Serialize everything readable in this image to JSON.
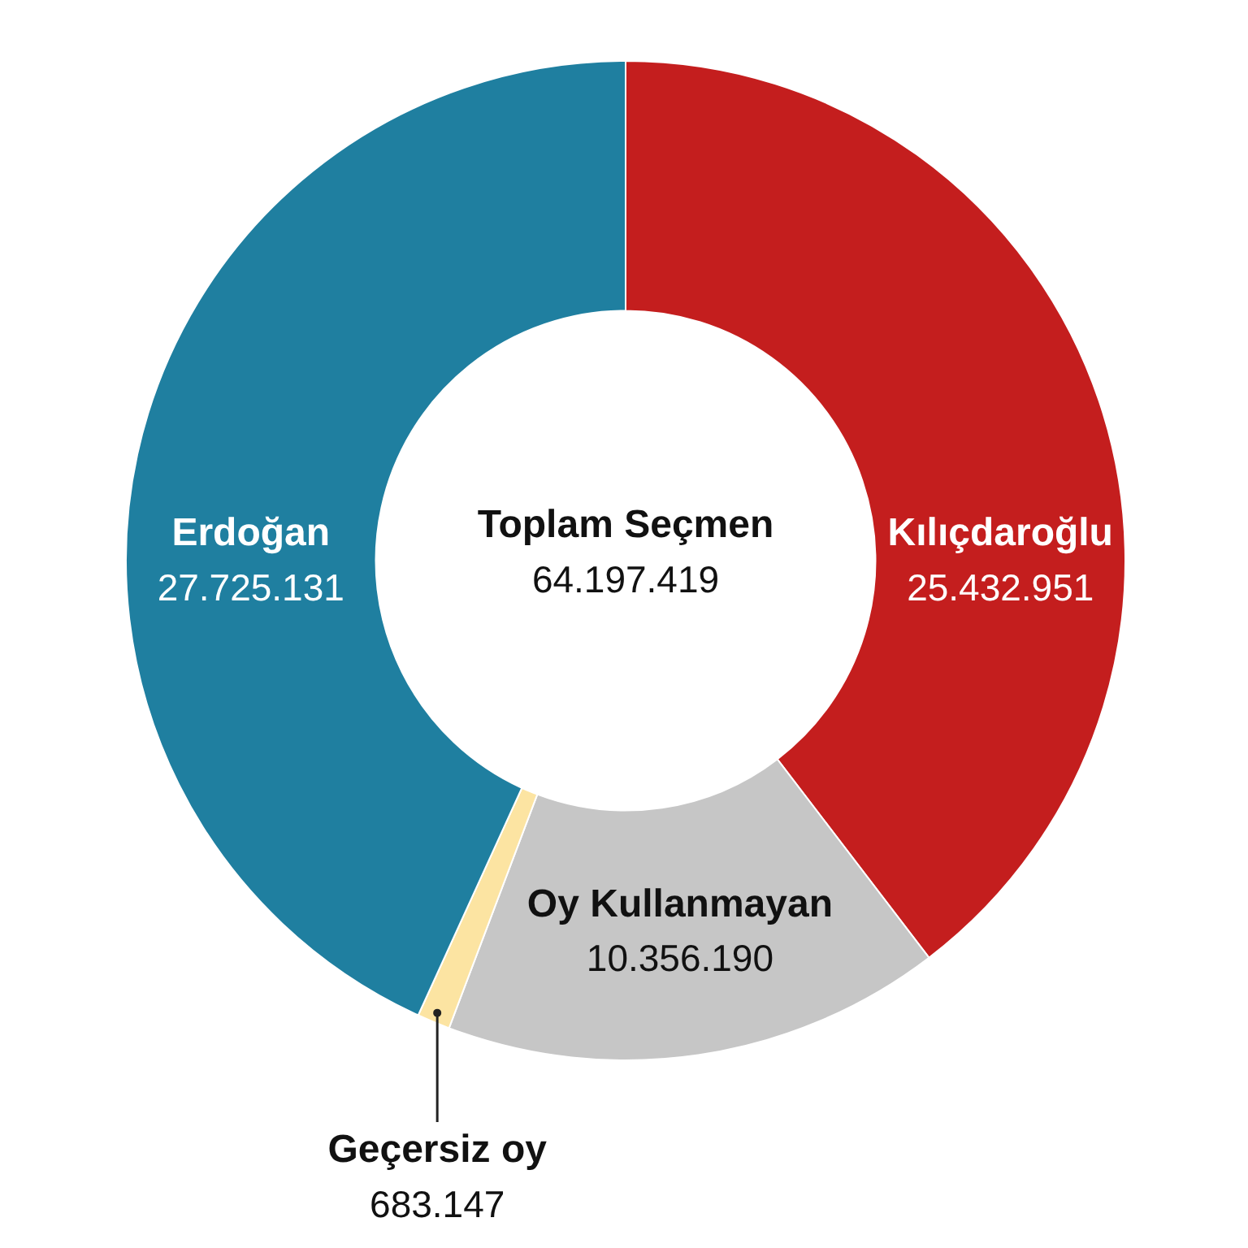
{
  "chart_data": {
    "type": "donut",
    "categories": [
      "Kılıçdaroğlu",
      "Oy Kullanmayan",
      "Geçersiz oy",
      "Erdoğan"
    ],
    "values": [
      25432951,
      10356190,
      683147,
      27725131
    ],
    "colors": [
      "#c41e1e",
      "#c6c6c6",
      "#fce4a2",
      "#1f7fa0"
    ],
    "value_labels": [
      "25.432.951",
      "10.356.190",
      "683.147",
      "27.725.131"
    ],
    "annotations": [
      "Toplam Seçmen",
      "64.197.419"
    ]
  }
}
